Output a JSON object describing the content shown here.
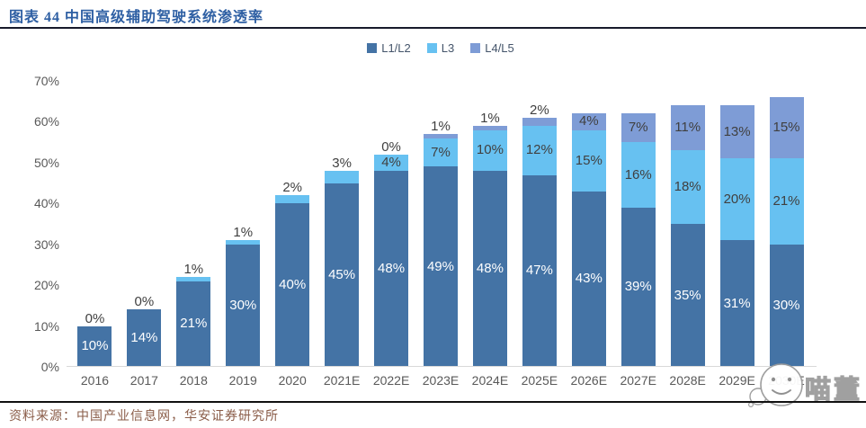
{
  "header": {
    "title": "图表 44 中国高级辅助驾驶系统渗透率"
  },
  "footer": {
    "source": "资料来源：中国产业信息网，华安证券研究所"
  },
  "watermark": {
    "text": "喵董",
    "icon": "cat-face-icon"
  },
  "chart_data": {
    "type": "bar",
    "stacked": true,
    "title": "中国高级辅助驾驶系统渗透率",
    "categories": [
      "2016",
      "2017",
      "2018",
      "2019",
      "2020",
      "2021E",
      "2022E",
      "2023E",
      "2024E",
      "2025E",
      "2026E",
      "2027E",
      "2028E",
      "2029E",
      "2030E"
    ],
    "series": [
      {
        "name": "L1/L2",
        "color": "#4473A5",
        "label_color": "#FFFFFF",
        "values": [
          10,
          14,
          21,
          30,
          40,
          45,
          48,
          49,
          48,
          47,
          43,
          39,
          35,
          31,
          30
        ]
      },
      {
        "name": "L3",
        "color": "#67C1F1",
        "label_color": "#404040",
        "values": [
          0,
          0,
          1,
          1,
          2,
          3,
          4,
          7,
          10,
          12,
          15,
          16,
          18,
          20,
          21
        ]
      },
      {
        "name": "L4/L5",
        "color": "#7E9CD6",
        "label_color": "#404040",
        "values": [
          null,
          null,
          null,
          null,
          null,
          null,
          0,
          1,
          1,
          2,
          4,
          7,
          11,
          13,
          15
        ]
      }
    ],
    "value_suffix": "%",
    "ylim": [
      0,
      70
    ],
    "ytick_step": 10,
    "ytick_suffix": "%",
    "grid": false,
    "legend_position": "top-center",
    "axis_color": "#D9D9D9",
    "tick_label_color": "#595959",
    "outside_label_color": "#404040"
  }
}
